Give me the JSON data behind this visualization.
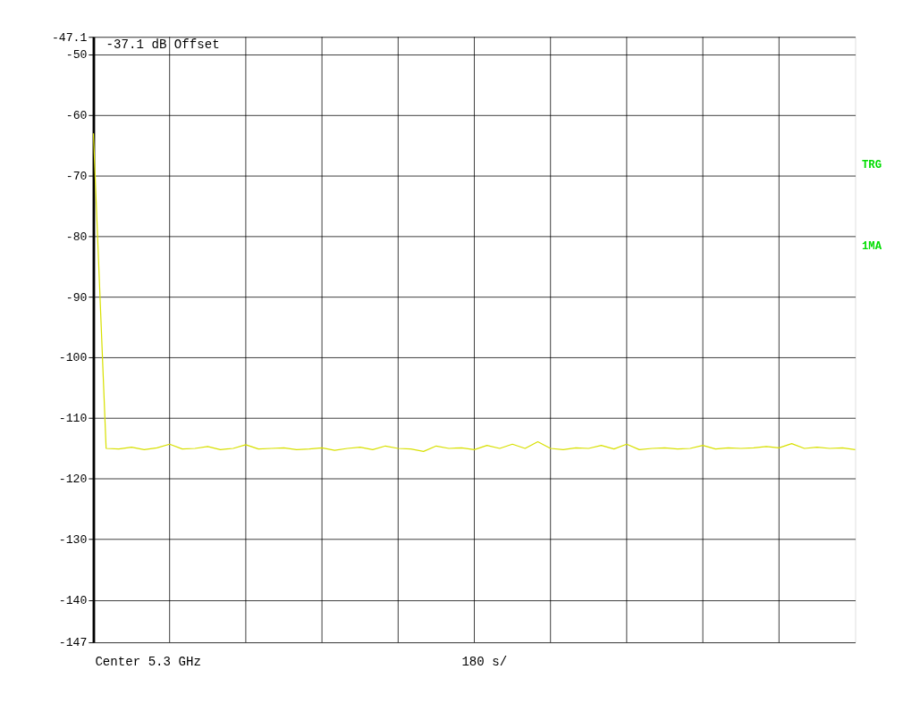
{
  "chart_data": {
    "type": "line",
    "categories": [
      null,
      null,
      null,
      null,
      null,
      null,
      null,
      null,
      null,
      null,
      null,
      null,
      null,
      null,
      null,
      null,
      null,
      null,
      null,
      null,
      null,
      null,
      null,
      null,
      null,
      null,
      null,
      null,
      null,
      null,
      null,
      null,
      null,
      null,
      null,
      null,
      null,
      null,
      null,
      null,
      null,
      null,
      null,
      null,
      null,
      null,
      null,
      null,
      null,
      null,
      null,
      null,
      null,
      null,
      null,
      null,
      null,
      null,
      null,
      null,
      null
    ],
    "series": [
      {
        "color": "#d8e000",
        "values": [
          -63,
          -115,
          -115.1,
          -114.8,
          -115.2,
          -114.9,
          -114.3,
          -115.1,
          -115.0,
          -114.7,
          -115.2,
          -115.0,
          -114.4,
          -115.1,
          -115.0,
          -114.9,
          -115.2,
          -115.1,
          -114.9,
          -115.3,
          -115.0,
          -114.8,
          -115.2,
          -114.6,
          -115.0,
          -115.1,
          -115.5,
          -114.6,
          -115.0,
          -114.9,
          -115.2,
          -114.5,
          -115.0,
          -114.3,
          -115.0,
          -113.9,
          -115.0,
          -115.2,
          -114.9,
          -115.0,
          -114.5,
          -115.1,
          -114.3,
          -115.2,
          -115.0,
          -114.9,
          -115.1,
          -115.0,
          -114.5,
          -115.1,
          -114.9,
          -115.0,
          -114.9,
          -114.7,
          -114.9,
          -114.2,
          -115.0,
          -114.8,
          -115.0,
          -114.9,
          -115.2
        ]
      }
    ],
    "ylim": [
      -147,
      -47.1
    ],
    "yticks": [
      -147,
      -140,
      -130,
      -120,
      -110,
      -100,
      -90,
      -80,
      -70,
      -60,
      -50,
      {
        "value": -47.1,
        "label": "-47.1"
      }
    ],
    "grid": true,
    "annotations": [
      "-37.1 dB Offset",
      "Center 5.3 GHz",
      "180 s/",
      "TRG",
      "1MA"
    ]
  }
}
